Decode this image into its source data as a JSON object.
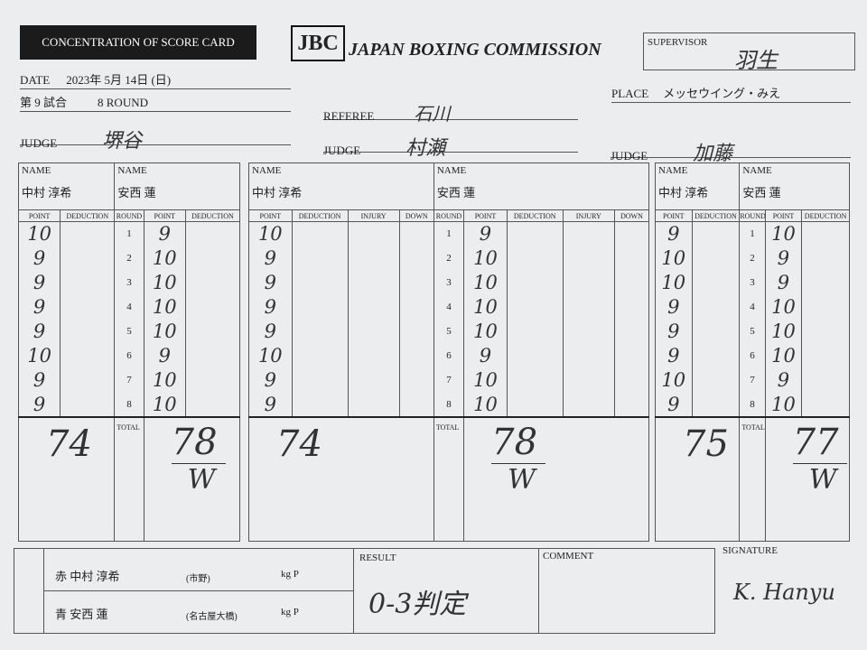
{
  "header": {
    "title": "CONCENTRATION OF SCORE CARD",
    "logo": "JBC",
    "organization": "JAPAN BOXING COMMISSION",
    "supervisor_label": "SUPERVISOR",
    "supervisor": "羽生"
  },
  "info": {
    "date_label": "DATE",
    "date": "2023年 5月 14日 (日)",
    "bout": "第 9 試合",
    "rounds": "8 ROUND",
    "referee_label": "REFEREE",
    "referee": "石川",
    "place_label": "PLACE",
    "place": "メッセウイング・みえ"
  },
  "cards": [
    {
      "judge_label": "JUDGE",
      "judge": "堺谷",
      "name_label": "NAME",
      "red_name": "中村 淳希",
      "blue_name": "安西 蓮",
      "red_headers": [
        "POINT",
        "DEDUCTION"
      ],
      "round_header": "ROUND",
      "blue_headers": [
        "POINT",
        "DEDUCTION"
      ],
      "rounds": [
        1,
        2,
        3,
        4,
        5,
        6,
        7,
        8
      ],
      "red_points": [
        10,
        9,
        9,
        9,
        9,
        10,
        9,
        9
      ],
      "blue_points": [
        9,
        10,
        10,
        10,
        10,
        9,
        10,
        10
      ],
      "total_label": "TOTAL",
      "red_total": 74,
      "blue_total": 78,
      "winner_mark": "W"
    },
    {
      "judge_label": "JUDGE",
      "judge": "村瀬",
      "name_label": "NAME",
      "red_name": "中村 淳希",
      "blue_name": "安西 蓮",
      "red_headers": [
        "POINT",
        "DEDUCTION",
        "INJURY",
        "DOWN"
      ],
      "round_header": "ROUND",
      "blue_headers": [
        "POINT",
        "DEDUCTION",
        "INJURY",
        "DOWN"
      ],
      "rounds": [
        1,
        2,
        3,
        4,
        5,
        6,
        7,
        8
      ],
      "red_points": [
        10,
        9,
        9,
        9,
        9,
        10,
        9,
        9
      ],
      "blue_points": [
        9,
        10,
        10,
        10,
        10,
        9,
        10,
        10
      ],
      "total_label": "TOTAL",
      "red_total": 74,
      "blue_total": 78,
      "winner_mark": "W"
    },
    {
      "judge_label": "JUDGE",
      "judge": "加藤",
      "name_label": "NAME",
      "red_name": "中村 淳希",
      "blue_name": "安西 蓮",
      "red_headers": [
        "POINT",
        "DEDUCTION"
      ],
      "round_header": "ROUND",
      "blue_headers": [
        "POINT",
        "DEDUCTION"
      ],
      "rounds": [
        1,
        2,
        3,
        4,
        5,
        6,
        7,
        8
      ],
      "red_points": [
        9,
        10,
        10,
        9,
        9,
        9,
        10,
        9
      ],
      "blue_points": [
        10,
        9,
        9,
        10,
        10,
        10,
        9,
        10
      ],
      "total_label": "TOTAL",
      "red_total": 75,
      "blue_total": 77,
      "winner_mark": "W"
    }
  ],
  "footer": {
    "red_corner": "赤 中村 淳希",
    "red_gym": "(市野)",
    "red_weight": "kg P",
    "blue_corner": "青 安西 蓮",
    "blue_gym": "(名古屋大橋)",
    "blue_weight": "kg P",
    "result_label": "RESULT",
    "result": "0-3判定",
    "comment_label": "COMMENT",
    "signature_label": "SIGNATURE",
    "signature": "K. Hanyu"
  }
}
